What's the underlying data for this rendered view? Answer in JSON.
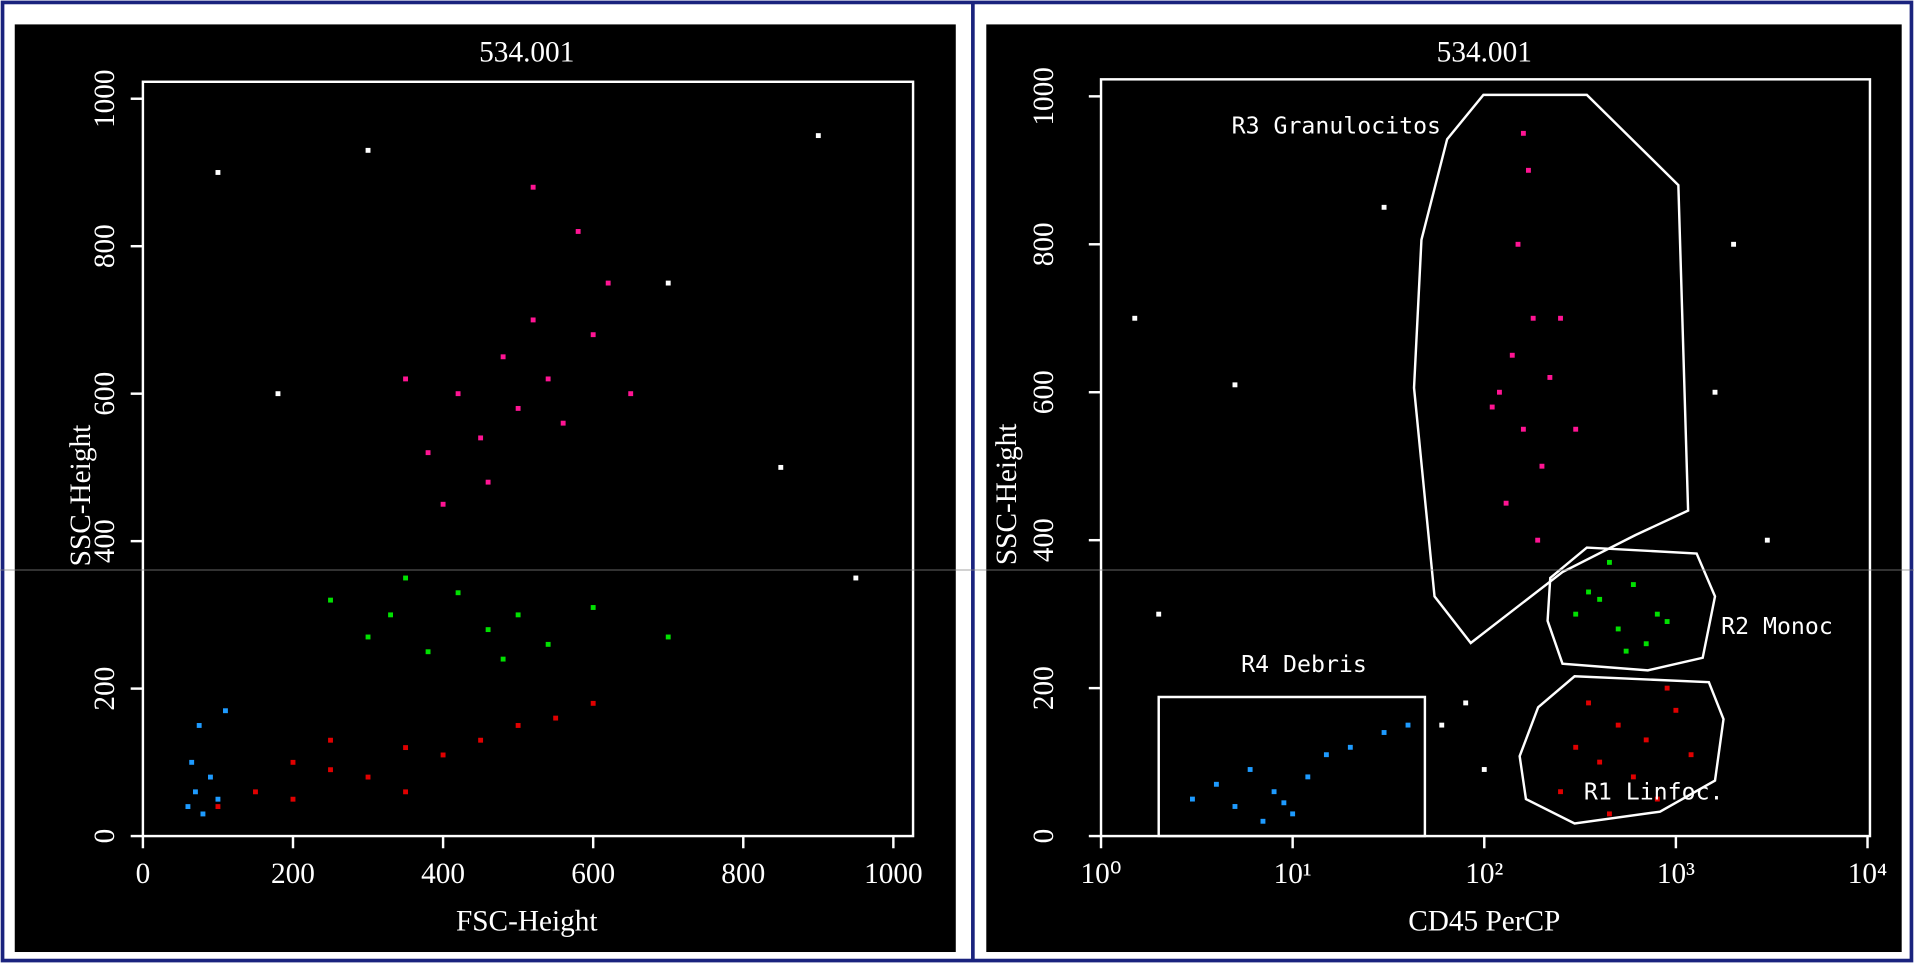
{
  "chart_data": [
    {
      "type": "scatter",
      "title": "534.001",
      "xlabel": "FSC-Height",
      "ylabel": "SSC-Height",
      "xlim": [
        0,
        1023
      ],
      "ylim": [
        0,
        1023
      ],
      "xticks": [
        0,
        200,
        400,
        600,
        800,
        1000
      ],
      "yticks": [
        0,
        200,
        400,
        600,
        800,
        1000
      ],
      "series": [
        {
          "color": "#ff1493",
          "x": [
            380,
            420,
            450,
            480,
            500,
            520,
            540,
            560,
            600,
            620,
            460,
            400,
            580,
            520,
            650,
            350
          ],
          "values": [
            520,
            600,
            540,
            650,
            580,
            700,
            620,
            560,
            680,
            750,
            480,
            450,
            820,
            880,
            600,
            620
          ]
        },
        {
          "color": "#00e000",
          "x": [
            250,
            300,
            330,
            380,
            420,
            460,
            500,
            540,
            600,
            350,
            480,
            700
          ],
          "values": [
            320,
            270,
            300,
            250,
            330,
            280,
            300,
            260,
            310,
            350,
            240,
            270
          ]
        },
        {
          "color": "#e00000",
          "x": [
            100,
            150,
            200,
            250,
            300,
            350,
            400,
            450,
            500,
            550,
            250,
            350,
            200,
            600
          ],
          "values": [
            40,
            60,
            50,
            90,
            80,
            120,
            110,
            130,
            150,
            160,
            130,
            60,
            100,
            180
          ]
        },
        {
          "color": "#1e9bff",
          "x": [
            60,
            70,
            80,
            90,
            100,
            75,
            110,
            65
          ],
          "values": [
            40,
            60,
            30,
            80,
            50,
            150,
            170,
            100
          ]
        },
        {
          "color": "#ffffff",
          "x": [
            100,
            180,
            700,
            900,
            950,
            300,
            850
          ],
          "values": [
            900,
            600,
            750,
            950,
            350,
            930,
            500
          ]
        }
      ]
    },
    {
      "type": "scatter",
      "title": "534.001",
      "xlabel": "CD45 PerCP",
      "ylabel": "SSC-Height",
      "xscale": "log",
      "xlim": [
        1,
        10000
      ],
      "ylim": [
        0,
        1023
      ],
      "xticks": [
        {
          "value": 1,
          "label": "10⁰"
        },
        {
          "value": 10,
          "label": "10¹"
        },
        {
          "value": 100,
          "label": "10²"
        },
        {
          "value": 1000,
          "label": "10³"
        },
        {
          "value": 10000,
          "label": "10⁴"
        }
      ],
      "yticks": [
        0,
        200,
        400,
        600,
        800,
        1000
      ],
      "series": [
        {
          "color": "#ff1493",
          "x": [
            120,
            140,
            160,
            180,
            200,
            150,
            130,
            170,
            220,
            250,
            110,
            190,
            160,
            300
          ],
          "values": [
            600,
            650,
            550,
            700,
            500,
            800,
            450,
            900,
            620,
            700,
            580,
            400,
            950,
            550
          ]
        },
        {
          "color": "#00e000",
          "x": [
            300,
            400,
            500,
            600,
            700,
            800,
            450,
            550,
            350,
            900
          ],
          "values": [
            300,
            320,
            280,
            340,
            260,
            300,
            370,
            250,
            330,
            290
          ]
        },
        {
          "color": "#e00000",
          "x": [
            250,
            300,
            400,
            500,
            600,
            700,
            800,
            1000,
            1200,
            350,
            450,
            900
          ],
          "values": [
            60,
            120,
            100,
            150,
            80,
            130,
            50,
            170,
            110,
            180,
            30,
            200
          ]
        },
        {
          "color": "#1e9bff",
          "x": [
            3,
            4,
            5,
            6,
            8,
            10,
            12,
            15,
            20,
            30,
            40,
            7,
            9
          ],
          "values": [
            50,
            70,
            40,
            90,
            60,
            30,
            80,
            110,
            120,
            140,
            150,
            20,
            45
          ]
        },
        {
          "color": "#ffffff",
          "x": [
            2,
            5,
            30,
            60,
            80,
            100,
            1600,
            2000,
            3000,
            1.5
          ],
          "values": [
            300,
            610,
            850,
            150,
            180,
            90,
            600,
            800,
            400,
            700
          ]
        }
      ],
      "regions": [
        {
          "label": "R3 Granulocitos",
          "x": [
            64,
            99,
            343,
            1030,
            1158,
            616,
            256,
            85,
            55,
            43,
            47
          ],
          "y": [
            942,
            1002,
            1002,
            880,
            440,
            407,
            357,
            261,
            324,
            606,
            806
          ]
        },
        {
          "label": "R2 Monoc",
          "x": [
            221,
            343,
            1283,
            1600,
            1380,
            714,
            256,
            214
          ],
          "y": [
            349,
            390,
            382,
            324,
            241,
            224,
            233,
            291
          ]
        },
        {
          "label": "R1 Linfoc.",
          "x": [
            191,
            296,
            1486,
            1772,
            1600,
            826,
            296,
            165,
            153
          ],
          "y": [
            174,
            216,
            208,
            158,
            75,
            33,
            17,
            50,
            108
          ]
        },
        {
          "label": "R4 Debris",
          "x": [
            2,
            49,
            49,
            2
          ],
          "y": [
            188,
            188,
            0,
            0
          ]
        }
      ]
    }
  ]
}
